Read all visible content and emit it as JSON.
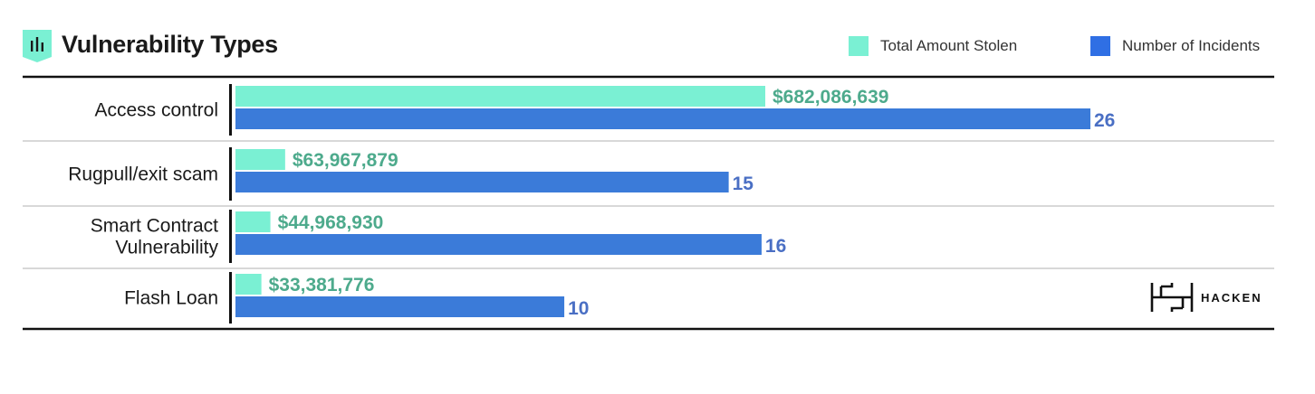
{
  "header": {
    "title": "Vulnerability Types",
    "icon": "bar-chart-icon"
  },
  "legend": {
    "placement": "top-right",
    "items": [
      {
        "label": "Total Amount Stolen",
        "color": "#7af0d3"
      },
      {
        "label": "Number of Incidents",
        "color": "#2f6fe4"
      }
    ]
  },
  "logo": {
    "text": "HACKEN"
  },
  "colors": {
    "amount_bar": "#7af0d3",
    "count_bar": "#3b7bd9",
    "amount_label": "#4daa8c",
    "count_label": "#4a6fc4",
    "divider": "#cccccc",
    "axis": "#111111"
  },
  "chart_data": {
    "type": "bar",
    "orientation": "horizontal",
    "categories": [
      "Access control",
      "Rugpull/exit scam",
      "Smart Contract\nVulnerability",
      "Flash Loan"
    ],
    "series": [
      {
        "name": "Total Amount Stolen",
        "values": [
          682086639,
          63967879,
          44968930,
          33381776
        ],
        "labels": [
          "$682,086,639",
          "$63,967,879",
          "$44,968,930",
          "$33,381,776"
        ]
      },
      {
        "name": "Number of Incidents",
        "values": [
          26,
          15,
          16,
          10
        ],
        "labels": [
          "26",
          "15",
          "16",
          "10"
        ]
      }
    ],
    "grid": false,
    "legend": "top-right"
  }
}
